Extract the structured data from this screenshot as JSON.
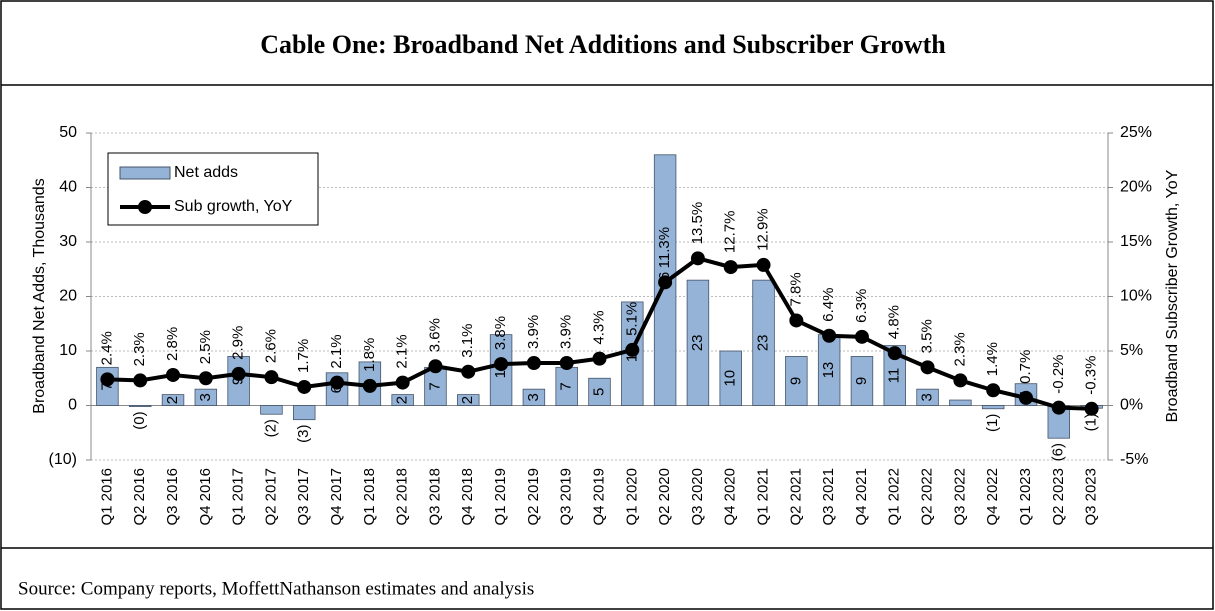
{
  "chart_data": {
    "type": "bar",
    "title": "Cable One: Broadband Net Additions and Subscriber Growth",
    "source": "Source: Company reports, MoffettNathanson estimates and analysis",
    "ylabel": "Broadband Net Adds, Thousands",
    "y2label": "Broadband Subscriber Growth, YoY",
    "categories": [
      "Q1 2016",
      "Q2 2016",
      "Q3 2016",
      "Q4 2016",
      "Q1 2017",
      "Q2 2017",
      "Q3 2017",
      "Q4 2017",
      "Q1 2018",
      "Q2 2018",
      "Q3 2018",
      "Q4 2018",
      "Q1 2019",
      "Q2 2019",
      "Q3 2019",
      "Q4 2019",
      "Q1 2020",
      "Q2 2020",
      "Q3 2020",
      "Q4 2020",
      "Q1 2021",
      "Q2 2021",
      "Q3 2021",
      "Q4 2021",
      "Q1 2022",
      "Q2 2022",
      "Q3 2022",
      "Q4 2022",
      "Q1 2023",
      "Q2 2023",
      "Q3 2023"
    ],
    "series": [
      {
        "name": "Net adds",
        "type": "bar",
        "color": "#95b3d7",
        "values": [
          7,
          -0.2,
          2,
          3,
          9,
          -1.6,
          -2.6,
          6,
          8,
          2,
          7,
          2,
          13,
          3,
          7,
          5,
          19,
          46,
          23,
          10,
          23,
          9,
          13,
          9,
          11,
          3,
          1,
          -0.6,
          4,
          -6,
          -0.5
        ],
        "value_labels": [
          "7",
          "(0)",
          "2",
          "3",
          "9",
          "(2)",
          "(3)",
          "6",
          "8",
          "2",
          "7",
          "2",
          "13",
          "3",
          "7",
          "5",
          "19",
          "46",
          "23",
          "10",
          "23",
          "9",
          "13",
          "9",
          "11",
          "3",
          null,
          "(1)",
          "4",
          "(6)",
          "(1)"
        ]
      },
      {
        "name": "Sub growth, YoY",
        "type": "line",
        "axis": "y2",
        "color": "#000000",
        "values": [
          2.4,
          2.3,
          2.8,
          2.5,
          2.9,
          2.6,
          1.7,
          2.1,
          1.8,
          2.1,
          3.6,
          3.1,
          3.8,
          3.9,
          3.9,
          4.3,
          5.1,
          11.3,
          13.5,
          12.7,
          12.9,
          7.8,
          6.4,
          6.3,
          4.8,
          3.5,
          2.3,
          1.4,
          0.7,
          -0.2,
          -0.3
        ],
        "value_labels": [
          "2.4%",
          "2.3%",
          "2.8%",
          "2.5%",
          "2.9%",
          "2.6%",
          "1.7%",
          "2.1%",
          "1.8%",
          "2.1%",
          "3.6%",
          "3.1%",
          "3.8%",
          "3.9%",
          "3.9%",
          "4.3%",
          "5.1%",
          "11.3%",
          "13.5%",
          "12.7%",
          "12.9%",
          "7.8%",
          "6.4%",
          "6.3%",
          "4.8%",
          "3.5%",
          "2.3%",
          "1.4%",
          "0.7%",
          "-0.2%",
          "-0.3%"
        ]
      }
    ],
    "ylim": [
      -10,
      50
    ],
    "yticks": [
      {
        "value": -10,
        "label": "(10)"
      },
      0,
      10,
      20,
      30,
      40,
      50
    ],
    "y2lim": [
      -5,
      25
    ],
    "y2ticks": [
      {
        "value": -5,
        "label": "-5%"
      },
      {
        "value": 0,
        "label": "0%"
      },
      {
        "value": 5,
        "label": "5%"
      },
      {
        "value": 10,
        "label": "10%"
      },
      {
        "value": 15,
        "label": "15%"
      },
      {
        "value": 20,
        "label": "20%"
      },
      {
        "value": 25,
        "label": "25%"
      }
    ],
    "legend": "upper left"
  }
}
